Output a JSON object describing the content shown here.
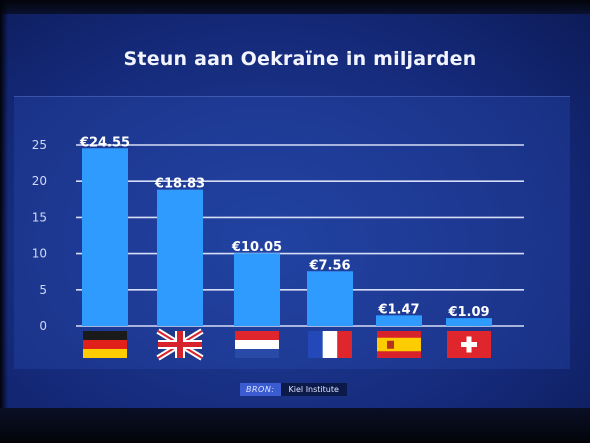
{
  "chart_data": {
    "type": "bar",
    "title": "Steun aan Oekraïne in miljarden",
    "categories": [
      "Germany",
      "United Kingdom",
      "Netherlands",
      "France",
      "Spain",
      "Switzerland"
    ],
    "values": [
      24.55,
      18.83,
      10.05,
      7.56,
      1.47,
      1.09
    ],
    "value_labels": [
      "€24.55",
      "€18.83",
      "€10.05",
      "€7.56",
      "€1.47",
      "€1.09"
    ],
    "yticks": [
      "0",
      "5",
      "10",
      "15",
      "20",
      "25"
    ],
    "ylim": [
      0,
      25
    ],
    "grid": true,
    "category_icons": [
      "flag-germany-icon",
      "flag-uk-icon",
      "flag-netherlands-icon",
      "flag-france-icon",
      "flag-spain-icon",
      "flag-switzerland-icon"
    ],
    "bar_color": "#2f9bff",
    "label_color": "#ffffff"
  },
  "source": {
    "label": "BRON:",
    "name": "Kiel Institute"
  }
}
